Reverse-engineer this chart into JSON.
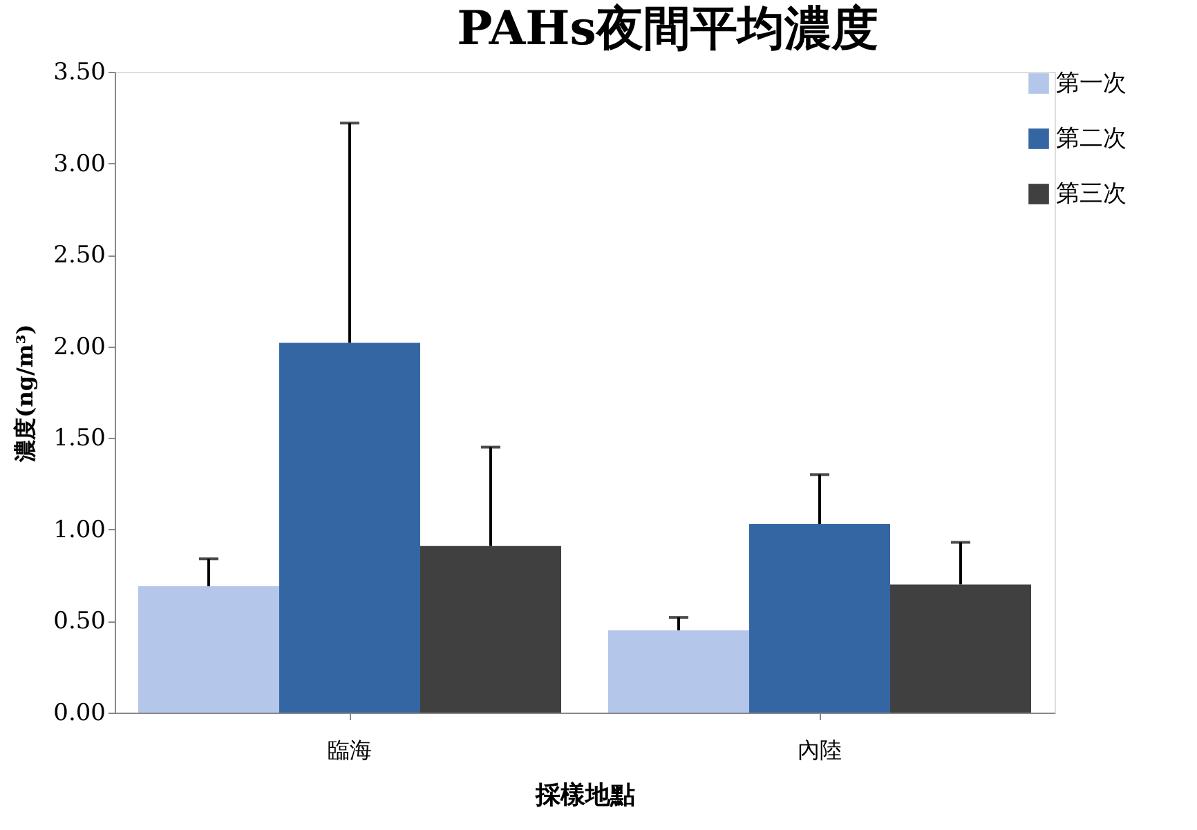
{
  "chart_data": {
    "type": "bar",
    "title": "PAHs夜間平均濃度",
    "xlabel": "採樣地點",
    "ylabel": "濃度(ng/m³)",
    "categories": [
      "臨海",
      "內陸"
    ],
    "series": [
      {
        "name": "第一次",
        "color": "#b4c6ea",
        "values": [
          0.69,
          0.45
        ],
        "errors": [
          [
            0.69,
            0.84
          ],
          [
            0.45,
            0.52
          ]
        ]
      },
      {
        "name": "第二次",
        "color": "#3566a4",
        "values": [
          2.02,
          1.03
        ],
        "errors": [
          [
            2.02,
            3.22
          ],
          [
            1.03,
            1.3
          ]
        ]
      },
      {
        "name": "第三次",
        "color": "#404040",
        "values": [
          0.91,
          0.7
        ],
        "errors": [
          [
            0.91,
            1.45
          ],
          [
            0.7,
            0.93
          ]
        ]
      }
    ],
    "ylim": [
      0,
      3.5
    ],
    "yticks": [
      {
        "value": 0,
        "label": "0.00"
      },
      {
        "value": 0.5,
        "label": "0.50"
      },
      {
        "value": 1,
        "label": "1.00"
      },
      {
        "value": 1.5,
        "label": "1.50"
      },
      {
        "value": 2,
        "label": "2.00"
      },
      {
        "value": 2.5,
        "label": "2.50"
      },
      {
        "value": 3,
        "label": "3.00"
      },
      {
        "value": 3.5,
        "label": "3.50"
      }
    ],
    "grid": false,
    "legend": "right"
  }
}
